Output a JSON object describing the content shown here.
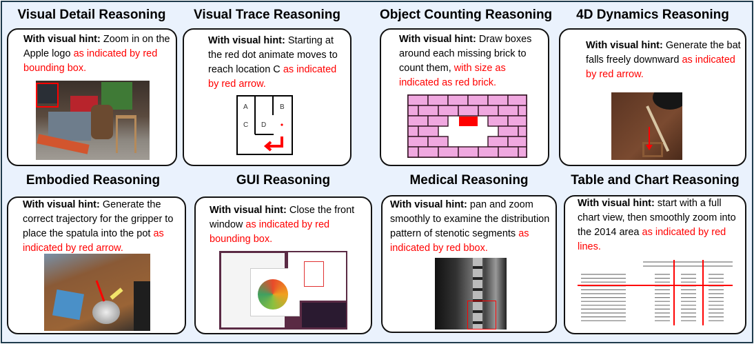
{
  "hint_label": "With visual hint:",
  "panels": [
    {
      "title": "Visual Detail Reasoning",
      "text": "Zoom in on the Apple logo",
      "highlight": "as indicated by red bounding box."
    },
    {
      "title": "Visual Trace Reasoning",
      "text": "Starting at the red dot animate moves to reach location C",
      "highlight": "as indicated by red arrow.",
      "maze_labels": [
        "A",
        "B",
        "C",
        "D"
      ]
    },
    {
      "title": "Object Counting Reasoning",
      "text": "Draw boxes around each missing brick to count them,",
      "highlight": "with size as indicated as red brick."
    },
    {
      "title": "4D Dynamics Reasoning",
      "text": "Generate the bat falls freely downward",
      "highlight": "as indicated by red arrow."
    },
    {
      "title": "Embodied Reasoning",
      "text": "Generate the correct trajectory for the gripper to place the spatula into the pot",
      "highlight": "as indicated by red arrow."
    },
    {
      "title": "GUI Reasoning",
      "text": "Close the front window",
      "highlight": "as indicated by red bounding box."
    },
    {
      "title": "Medical Reasoning",
      "text": "pan and zoom smoothly to examine the distribution pattern of stenotic segments",
      "highlight": "as indicated by red bbox."
    },
    {
      "title": "Table and Chart Reasoning",
      "text": "start with a full chart view, then smoothly zoom into the 2014 area",
      "highlight": "as indicated by red lines."
    }
  ],
  "colors": {
    "frame_border": "#1e3a4c",
    "background": "#eaf2fd",
    "highlight": "#ff0000",
    "brick": "#f0a8e0"
  }
}
